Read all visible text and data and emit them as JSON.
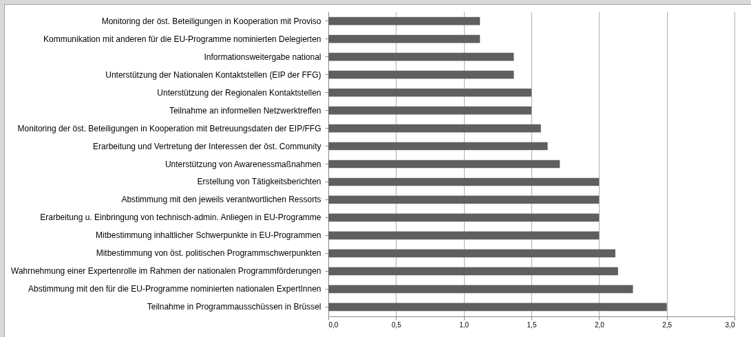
{
  "chart_data": {
    "type": "bar",
    "orientation": "horizontal",
    "categories": [
      "Monitoring der öst. Beteiligungen in Kooperation mit Proviso",
      "Kommunikation mit anderen für die EU-Programme nominierten Delegierten",
      "Informationsweitergabe national",
      "Unterstützung der Nationalen Kontaktstellen (EIP der FFG)",
      "Unterstützung der Regionalen Kontaktstellen",
      "Teilnahme an informellen Netzwerktreffen",
      "Monitoring der öst. Beteiligungen in Kooperation mit Betreuungsdaten der EIP/FFG",
      "Erarbeitung und Vertretung der Interessen der öst. Community",
      "Unterstützung von Awarenessmaßnahmen",
      "Erstellung von Tätigkeitsberichten",
      "Abstimmung mit den jeweils verantwortlichen Ressorts",
      "Erarbeitung u. Einbringung von technisch-admin. Anliegen in EU-Programme",
      "Mitbestimmung inhaltlicher Schwerpunkte in EU-Programmen",
      "Mitbestimmung von öst. politischen Programmschwerpunkten",
      "Wahrnehmung einer Expertenrolle im Rahmen der nationalen Programmförderungen",
      "Abstimmung mit den für die EU-Programme nominierten nationalen ExpertInnen",
      "Teilnahme in Programmausschüssen in Brüssel"
    ],
    "values": [
      1.12,
      1.12,
      1.37,
      1.37,
      1.5,
      1.5,
      1.57,
      1.62,
      1.71,
      2.0,
      2.0,
      2.0,
      2.0,
      2.12,
      2.14,
      2.25,
      2.5
    ],
    "color": "#5f5f5f",
    "xlim": [
      0,
      3
    ],
    "xticks": [
      {
        "value": 0,
        "label": "0,0"
      },
      {
        "value": 0.5,
        "label": "0,5"
      },
      {
        "value": 1,
        "label": "1,0"
      },
      {
        "value": 1.5,
        "label": "1,5"
      },
      {
        "value": 2,
        "label": "2,0"
      },
      {
        "value": 2.5,
        "label": "2,5"
      },
      {
        "value": 3,
        "label": "3,0"
      }
    ],
    "grid": "x"
  }
}
